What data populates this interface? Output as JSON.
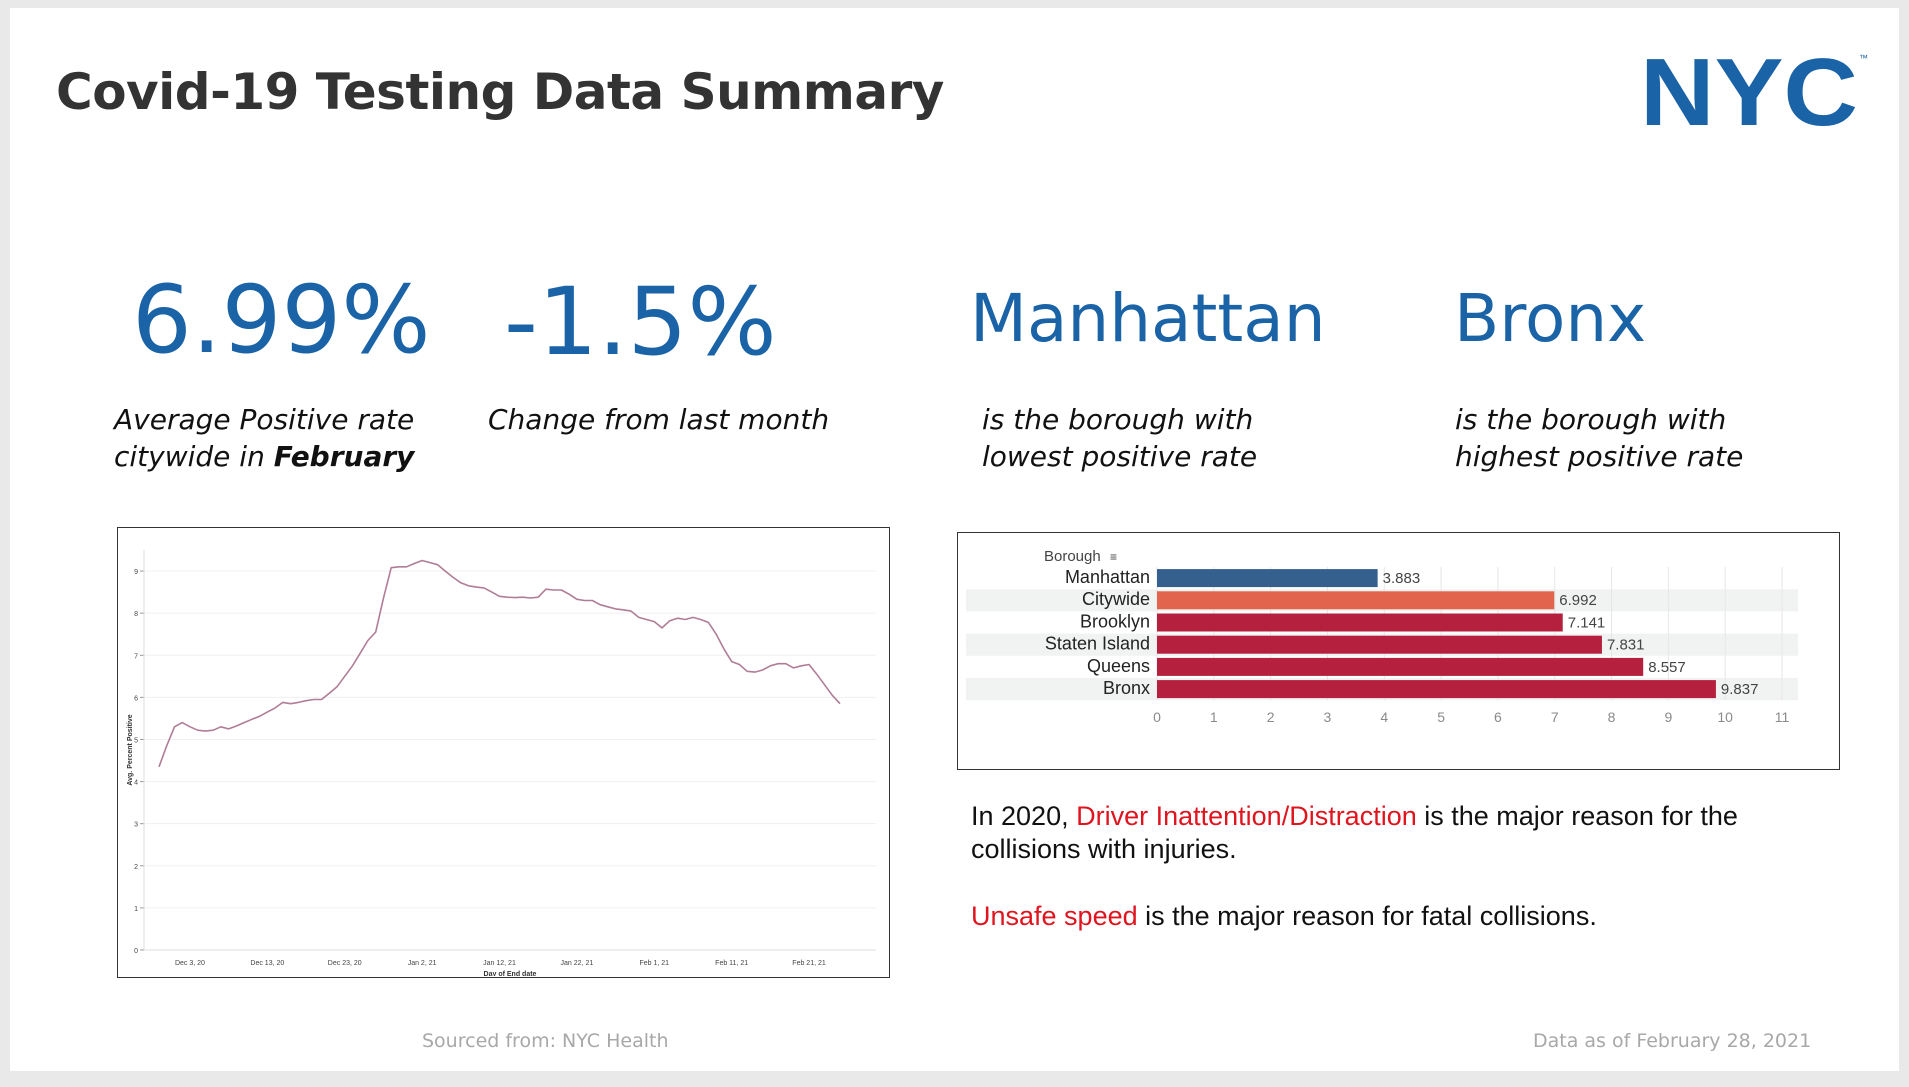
{
  "title": "Covid-19 Testing Data Summary",
  "logo": {
    "text": "NYC",
    "tm": "™",
    "color": "#1b63a7"
  },
  "stats": [
    {
      "value": "6.99%",
      "caption_line1": "Average Positive rate",
      "caption_line2_pre": "citywide in ",
      "caption_line2_bold": "February"
    },
    {
      "value": "-1.5%",
      "caption_line1": "Change from last month"
    },
    {
      "value": "Manhattan",
      "caption_line1": "is the borough with",
      "caption_line2": "lowest positive rate"
    },
    {
      "value": "Bronx",
      "caption_line1": "is the borough with",
      "caption_line2": "highest positive rate"
    }
  ],
  "notes": {
    "line1_pre": "In 2020, ",
    "line1_red": "Driver Inattention/Distraction",
    "line1_post": " is the major reason for the collisions with injuries.",
    "line2_red": "Unsafe speed",
    "line2_post": " is the major reason for fatal collisions."
  },
  "footer": {
    "source": "Sourced from: NYC Health",
    "as_of": "Data as of February 28, 2021"
  },
  "chart_data": [
    {
      "type": "line",
      "title": "",
      "xlabel": "Day of End date",
      "ylabel": "Avg. Percent Positive",
      "ylim": [
        0,
        9.5
      ],
      "yticks": [
        "0",
        "1",
        "2",
        "3",
        "4",
        "5",
        "6",
        "7",
        "8",
        "9"
      ],
      "xticks": [
        "Dec 3, 20",
        "Dec 13, 20",
        "Dec 23, 20",
        "Jan 2, 21",
        "Jan 12, 21",
        "Jan 22, 21",
        "Feb 1, 21",
        "Feb 11, 21",
        "Feb 21, 21"
      ],
      "line_color": "#b07d96",
      "grid": true,
      "x": [
        "Nov 28, 20",
        "Nov 30, 20",
        "Dec 1, 20",
        "Dec 2, 20",
        "Dec 3, 20",
        "Dec 4, 20",
        "Dec 5, 20",
        "Dec 6, 20",
        "Dec 7, 20",
        "Dec 8, 20",
        "Dec 9, 20",
        "Dec 10, 20",
        "Dec 11, 20",
        "Dec 12, 20",
        "Dec 13, 20",
        "Dec 14, 20",
        "Dec 15, 20",
        "Dec 16, 20",
        "Dec 17, 20",
        "Dec 18, 20",
        "Dec 19, 20",
        "Dec 20, 20",
        "Dec 21, 20",
        "Dec 22, 20",
        "Dec 23, 20",
        "Dec 24, 20",
        "Dec 25, 20",
        "Dec 26, 20",
        "Dec 27, 20",
        "Dec 28, 20",
        "Dec 29, 20",
        "Dec 30, 20",
        "Dec 31, 20",
        "Jan 1, 21",
        "Jan 2, 21",
        "Jan 3, 21",
        "Jan 4, 21",
        "Jan 5, 21",
        "Jan 6, 21",
        "Jan 7, 21",
        "Jan 8, 21",
        "Jan 9, 21",
        "Jan 10, 21",
        "Jan 11, 21",
        "Jan 12, 21",
        "Jan 13, 21",
        "Jan 14, 21",
        "Jan 15, 21",
        "Jan 16, 21",
        "Jan 17, 21",
        "Jan 18, 21",
        "Jan 19, 21",
        "Jan 20, 21",
        "Jan 21, 21",
        "Jan 22, 21",
        "Jan 23, 21",
        "Jan 24, 21",
        "Jan 25, 21",
        "Jan 26, 21",
        "Jan 27, 21",
        "Jan 28, 21",
        "Jan 29, 21",
        "Jan 30, 21",
        "Jan 31, 21",
        "Feb 1, 21",
        "Feb 2, 21",
        "Feb 3, 21",
        "Feb 4, 21",
        "Feb 5, 21",
        "Feb 6, 21",
        "Feb 7, 21",
        "Feb 8, 21",
        "Feb 9, 21",
        "Feb 10, 21",
        "Feb 11, 21",
        "Feb 12, 21",
        "Feb 13, 21",
        "Feb 14, 21",
        "Feb 15, 21",
        "Feb 16, 21",
        "Feb 17, 21",
        "Feb 18, 21",
        "Feb 19, 21",
        "Feb 20, 21",
        "Feb 21, 21",
        "Feb 22, 21",
        "Feb 23, 21",
        "Feb 24, 21",
        "Feb 25, 21"
      ],
      "y": [
        4.35,
        4.85,
        5.3,
        5.4,
        5.3,
        5.22,
        5.2,
        5.22,
        5.3,
        5.25,
        5.32,
        5.4,
        5.48,
        5.55,
        5.65,
        5.75,
        5.88,
        5.85,
        5.88,
        5.92,
        5.95,
        5.95,
        6.1,
        6.25,
        6.5,
        6.75,
        7.05,
        7.35,
        7.55,
        8.35,
        9.08,
        9.1,
        9.1,
        9.18,
        9.25,
        9.2,
        9.15,
        9.0,
        8.85,
        8.72,
        8.65,
        8.62,
        8.6,
        8.5,
        8.4,
        8.38,
        8.37,
        8.38,
        8.36,
        8.38,
        8.57,
        8.55,
        8.55,
        8.45,
        8.33,
        8.3,
        8.3,
        8.2,
        8.15,
        8.1,
        8.08,
        8.05,
        7.9,
        7.85,
        7.8,
        7.65,
        7.82,
        7.88,
        7.85,
        7.9,
        7.85,
        7.78,
        7.5,
        7.15,
        6.85,
        6.78,
        6.62,
        6.6,
        6.65,
        6.75,
        6.8,
        6.8,
        6.7,
        6.75,
        6.78,
        6.55,
        6.3,
        6.05,
        5.85
      ]
    },
    {
      "type": "bar",
      "orientation": "horizontal",
      "header": "Borough",
      "categories": [
        "Manhattan",
        "Citywide",
        "Brooklyn",
        "Staten Island",
        "Queens",
        "Bronx"
      ],
      "values": [
        3.883,
        6.992,
        7.141,
        7.831,
        8.557,
        9.837
      ],
      "value_labels": [
        "3.883",
        "6.992",
        "7.141",
        "7.831",
        "8.557",
        "9.837"
      ],
      "colors": [
        "#355f8c",
        "#e2644c",
        "#b5203f",
        "#b5203f",
        "#b5203f",
        "#b5203f"
      ],
      "xlim": [
        0,
        11.2
      ],
      "xticks": [
        "0",
        "1",
        "2",
        "3",
        "4",
        "5",
        "6",
        "7",
        "8",
        "9",
        "10",
        "11"
      ],
      "grid": true
    }
  ]
}
